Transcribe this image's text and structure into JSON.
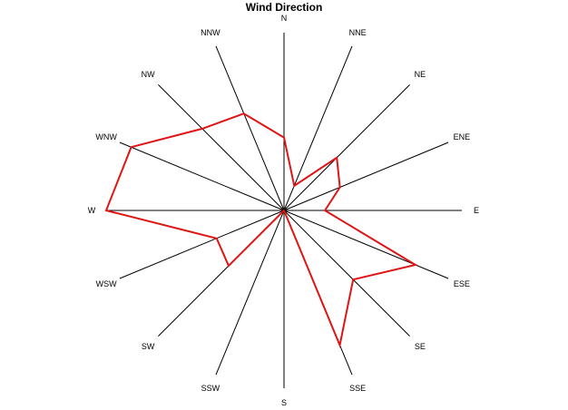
{
  "chart_data": {
    "type": "radar",
    "title": "Wind Direction",
    "categories": [
      "N",
      "NNE",
      "NE",
      "ENE",
      "E",
      "ESE",
      "SE",
      "SSE",
      "S",
      "SSW",
      "SW",
      "WSW",
      "W",
      "WNW",
      "NW",
      "NNW"
    ],
    "series": [
      {
        "values": [
          0.41,
          0.15,
          0.42,
          0.34,
          0.23,
          0.8,
          0.55,
          0.82,
          0.0,
          0.0,
          0.44,
          0.41,
          1.0,
          0.93,
          0.65,
          0.59
        ]
      }
    ],
    "rmax": 1.0,
    "grid": false,
    "colors": {
      "series": "#e01414",
      "spokes": "#000000"
    }
  }
}
